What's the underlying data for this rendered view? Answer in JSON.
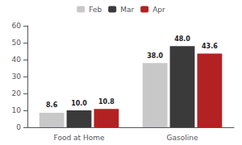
{
  "chart_data": {
    "type": "bar",
    "categories": [
      "Food at Home",
      "Gasoline"
    ],
    "series": [
      {
        "name": "Feb",
        "color": "#c8c8c8",
        "values": [
          8.6,
          38.0
        ],
        "value_labels": [
          "8.6",
          "38.0"
        ]
      },
      {
        "name": "Mar",
        "color": "#3a3a3a",
        "values": [
          10.0,
          48.0
        ],
        "value_labels": [
          "10.0",
          "48.0"
        ]
      },
      {
        "name": "Apr",
        "color": "#b22222",
        "values": [
          10.8,
          43.6
        ],
        "value_labels": [
          "10.8",
          "43.6"
        ]
      }
    ],
    "ylim": [
      0,
      60
    ],
    "yticks": [
      0,
      10,
      20,
      30,
      40,
      50,
      60
    ],
    "grid": false,
    "legend": "top",
    "data_labels": true
  }
}
